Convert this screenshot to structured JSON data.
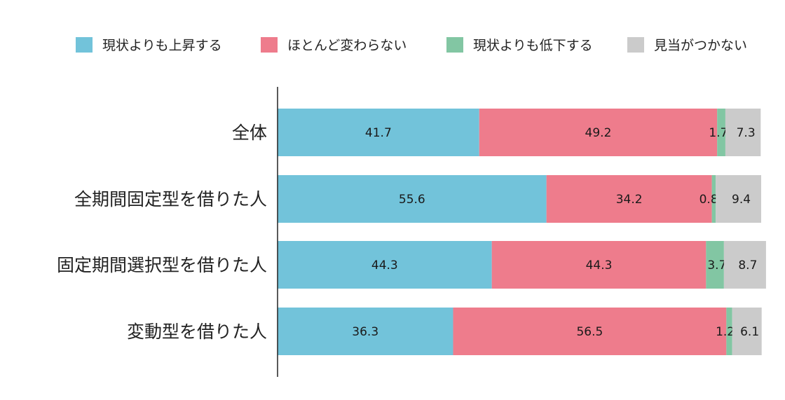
{
  "chart_data": {
    "type": "bar",
    "orientation": "horizontal",
    "stacked": true,
    "title": "",
    "xlabel": "",
    "ylabel": "",
    "xlim": [
      0,
      100
    ],
    "grid": false,
    "legend_position": "top-right",
    "categories": [
      "全体",
      "全期間固定型を借りた人",
      "固定期間選択型を借りた人",
      "変動型を借りた人"
    ],
    "series": [
      {
        "name": "現状よりも上昇する",
        "color": "#72c3da",
        "values": [
          41.7,
          55.6,
          44.3,
          36.3
        ]
      },
      {
        "name": "ほとんど変わらない",
        "color": "#ee7c8c",
        "values": [
          49.2,
          34.2,
          44.3,
          56.5
        ]
      },
      {
        "name": "現状よりも低下する",
        "color": "#82c6a3",
        "values": [
          1.7,
          0.8,
          3.7,
          1.2
        ]
      },
      {
        "name": "見当がつかない",
        "color": "#cbcbcb",
        "values": [
          7.3,
          9.4,
          8.7,
          6.1
        ]
      }
    ],
    "value_labels": [
      [
        "41.7",
        "49.2",
        "1.7",
        "7.3"
      ],
      [
        "55.6",
        "34.2",
        "0.8",
        "9.4"
      ],
      [
        "44.3",
        "44.3",
        "3.7",
        "8.7"
      ],
      [
        "36.3",
        "56.5",
        "1.2",
        "6.1"
      ]
    ]
  }
}
